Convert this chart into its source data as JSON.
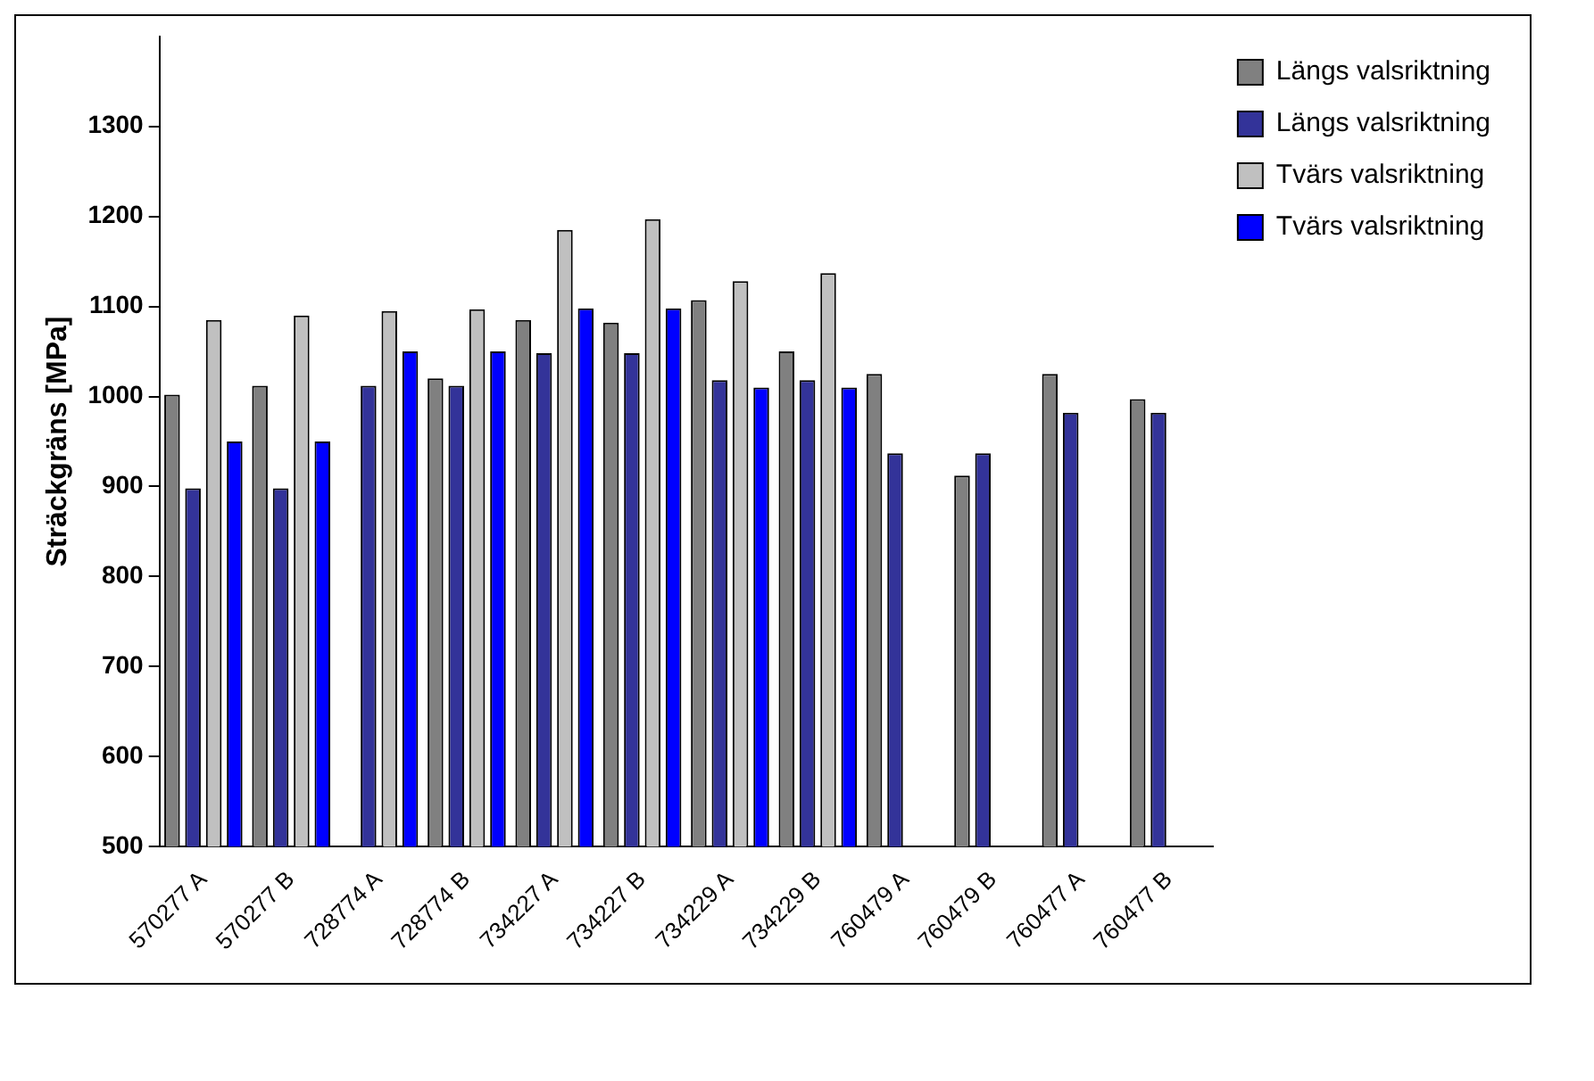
{
  "chart_data": {
    "type": "bar",
    "ylabel": "Sträckgräns [MPa]",
    "categories": [
      "570277 A",
      "570277 B",
      "728774 A",
      "728774 B",
      "734227 A",
      "734227 B",
      "734229 A",
      "734229 B",
      "760479 A",
      "760479 B",
      "760477 A",
      "760477 B"
    ],
    "series": [
      {
        "name": "Längs valsriktning",
        "color": "#808080",
        "values": [
          1002,
          1012,
          null,
          1020,
          1085,
          1082,
          1107,
          1050,
          1025,
          912,
          1025,
          997
        ]
      },
      {
        "name": "Längs valsriktning",
        "color": "#333399",
        "values": [
          898,
          898,
          1012,
          1012,
          1048,
          1048,
          1018,
          1018,
          937,
          937,
          982,
          982
        ]
      },
      {
        "name": "Tvärs valsriktning",
        "color": "#c0c0c0",
        "values": [
          1085,
          1090,
          1095,
          1097,
          1185,
          1197,
          1128,
          1137,
          null,
          null,
          null,
          null
        ]
      },
      {
        "name": "Tvärs valsriktning",
        "color": "#0000ff",
        "values": [
          950,
          950,
          1050,
          1050,
          1098,
          1098,
          1010,
          1010,
          null,
          null,
          null,
          null
        ]
      }
    ],
    "ylim": [
      500,
      1400
    ],
    "yticks": [
      500,
      600,
      700,
      800,
      900,
      1000,
      1100,
      1200,
      1300
    ],
    "grid": false,
    "legend": "top right"
  }
}
